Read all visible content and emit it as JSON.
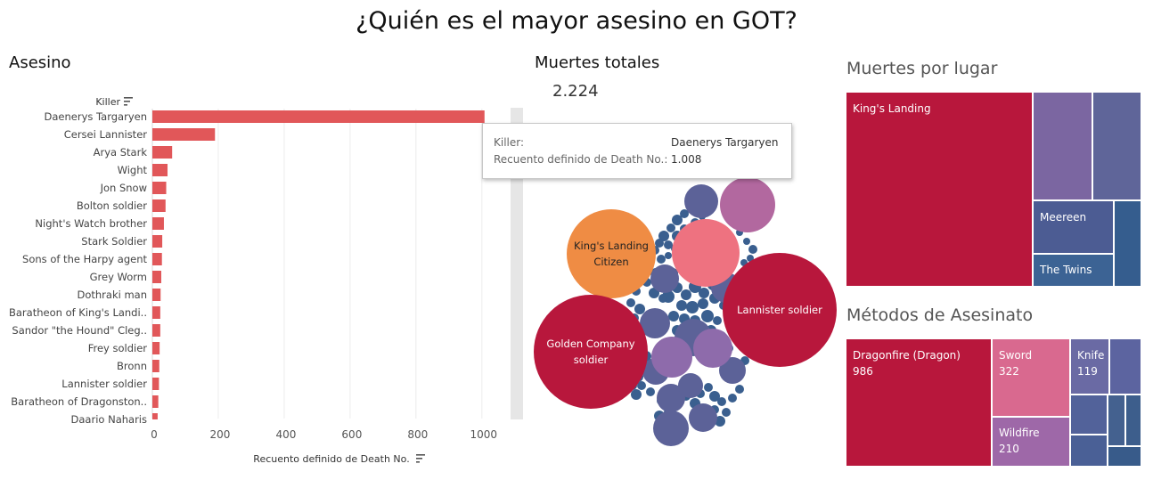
{
  "title": "¿Quién es el mayor asesino en GOT?",
  "bar_section": {
    "title": "Asesino",
    "killer_header": "Killer"
  },
  "kpi_section": {
    "title": "Muertes totales",
    "value": "2.224"
  },
  "tooltip": {
    "killer_label": "Killer:",
    "killer_value": "Daenerys Targaryen",
    "count_label": "Recuento definido de Death No.:",
    "count_value": "1.008"
  },
  "place_section": {
    "title": "Muertes por lugar"
  },
  "method_section": {
    "title": "Métodos de Asesinato"
  },
  "colors": {
    "bar": "#e15759",
    "crimson": "#b8173c",
    "pink": "#ee7280",
    "orange": "#ef8c44",
    "purple": "#8e6bab",
    "slate": "#5c6298",
    "navy": "#3a5f8f"
  },
  "chart_data": [
    {
      "type": "bar",
      "orientation": "horizontal",
      "title": "Asesino",
      "ylabel": "Killer",
      "xlabel": "Recuento definido de Death No.",
      "xlim": [
        0,
        1060
      ],
      "xticks": [
        "0",
        "200",
        "400",
        "600",
        "800",
        "1000"
      ],
      "grid": true,
      "categories": [
        "Daenerys Targaryen",
        "Cersei Lannister",
        "Arya Stark",
        "Wight",
        "Jon Snow",
        "Bolton soldier",
        "Night's Watch brother",
        "Stark Soldier",
        "Sons of the Harpy agent",
        "Grey Worm",
        "Dothraki man",
        "Baratheon of King's Landi..",
        "Sandor \"the Hound\" Cleg..",
        "Frey soldier",
        "Bronn",
        "Lannister soldier",
        "Baratheon of Dragonston..",
        "Daario Naharis"
      ],
      "values": [
        1008,
        190,
        60,
        46,
        42,
        40,
        35,
        30,
        29,
        27,
        25,
        24,
        24,
        22,
        21,
        20,
        18,
        16
      ]
    },
    {
      "type": "bubble",
      "title": "Muertes totales",
      "labels": [
        "King's Landing Citizen",
        "Golden Company soldier",
        "Lannister soldier"
      ]
    },
    {
      "type": "treemap",
      "title": "Muertes por lugar",
      "labels": [
        "King's Landing",
        "Meereen",
        "The Twins"
      ]
    },
    {
      "type": "treemap",
      "title": "Métodos de Asesinato",
      "labels": [
        "Dragonfire (Dragon)",
        "Sword",
        "Knife",
        "Wildfire"
      ],
      "values": [
        "986",
        "322",
        "119",
        "210"
      ]
    }
  ]
}
